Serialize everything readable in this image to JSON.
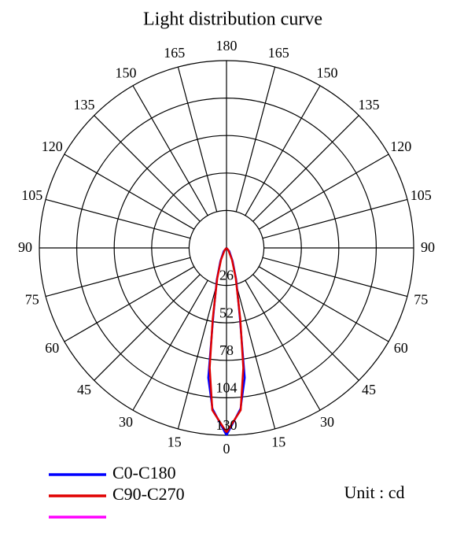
{
  "chart_data": {
    "type": "polar",
    "title": "Light distribution curve",
    "angle_ticks": [
      0,
      15,
      30,
      45,
      60,
      75,
      90,
      105,
      120,
      135,
      150,
      165,
      180
    ],
    "rlim": [
      0,
      130
    ],
    "rticks": [
      26,
      52,
      78,
      104,
      130
    ],
    "theta": [
      0,
      5,
      8,
      11,
      17,
      25,
      40,
      90
    ],
    "series": [
      {
        "name": "C0-C180",
        "color": "#0000ff",
        "values": [
          130,
          112,
          91,
          48,
          23,
          10,
          3,
          0
        ]
      },
      {
        "name": "C90-C270",
        "color": "#e00000",
        "values": [
          128,
          113,
          84,
          50,
          22,
          9,
          2,
          0
        ]
      },
      {
        "name": null,
        "color": "#ff00ff",
        "values": []
      }
    ],
    "unit": "Unit : cd"
  }
}
